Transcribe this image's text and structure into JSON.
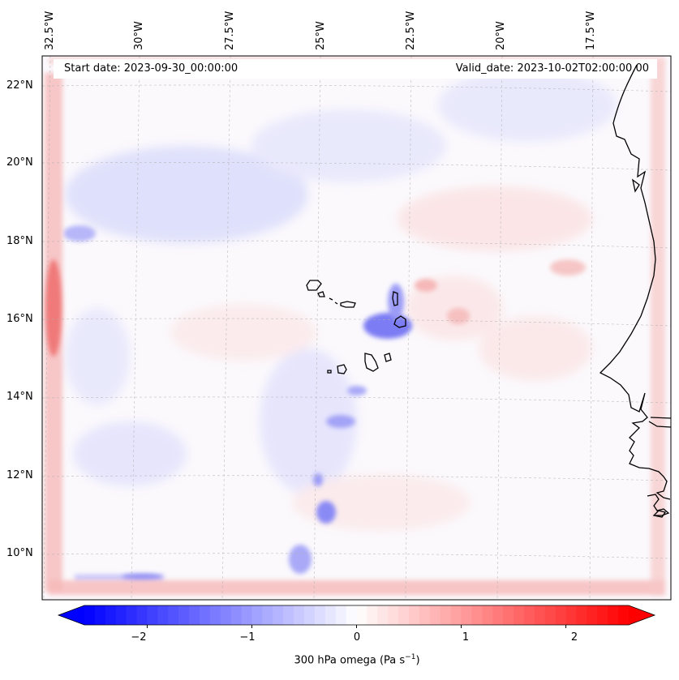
{
  "header": {
    "start_date": "Start date: 2023-09-30_00:00:00",
    "valid_date": "Valid_date: 2023-10-02T02:00:00.00"
  },
  "axes": {
    "lon_labels": [
      "32.5°W",
      "30°W",
      "27.5°W",
      "25°W",
      "22.5°W",
      "20°W",
      "17.5°W"
    ],
    "lat_labels": [
      "22°N",
      "20°N",
      "18°N",
      "16°N",
      "14°N",
      "12°N",
      "10°N"
    ],
    "gridlines": true
  },
  "colorbar": {
    "label": "300 hPa omega (Pa s",
    "label_exp": "−1",
    "label_close": ")",
    "ticks": [
      "−2",
      "−1",
      "0",
      "1",
      "2"
    ],
    "range": [
      -2.6,
      2.6
    ],
    "extend": "both",
    "colormap": "bwr",
    "neg_color": "#0000ff",
    "zero_color": "#ffffff",
    "pos_color": "#ff0000"
  },
  "colors": {
    "coastline": "#000000",
    "gridline": "#b0b0b0"
  }
}
